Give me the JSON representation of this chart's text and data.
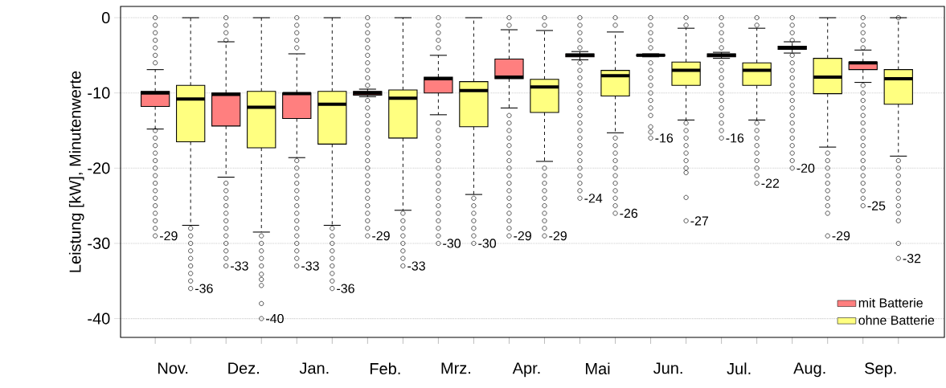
{
  "chart_data": {
    "type": "box",
    "ylabel": "Leistung [kW], Minutenwerte",
    "categories": [
      "Nov.",
      "Dez.",
      "Jan.",
      "Feb.",
      "Mrz.",
      "Apr.",
      "Mai",
      "Jun.",
      "Jul.",
      "Aug.",
      "Sep."
    ],
    "ylim": [
      -42.5,
      1.5
    ],
    "yticks": [
      -40,
      -30,
      -20,
      -10,
      0
    ],
    "grid": "y",
    "legend": "bottom right",
    "marker": "circle",
    "series": [
      {
        "name": "mit Batterie",
        "color": "#ff7f7f",
        "boxes": [
          {
            "low": -14.8,
            "q1": -11.8,
            "median": -10.0,
            "q3": -9.8,
            "high": -6.9,
            "outliers": [
              0,
              -1,
              -2,
              -3,
              -4,
              -5,
              -6,
              -15,
              -16,
              -17,
              -18,
              -19,
              -20,
              -21,
              -22,
              -23,
              -24,
              -25,
              -26,
              -27,
              -28,
              -29
            ]
          },
          {
            "low": -21.2,
            "q1": -14.4,
            "median": -10.2,
            "q3": -10.0,
            "high": -3.2,
            "outliers": [
              0,
              -1,
              -2,
              -3,
              -22,
              -23,
              -24,
              -25,
              -26,
              -27,
              -28,
              -29,
              -30,
              -31,
              -32,
              -33
            ]
          },
          {
            "low": -18.6,
            "q1": -13.4,
            "median": -10.1,
            "q3": -10.0,
            "high": -4.8,
            "outliers": [
              0,
              -1,
              -2,
              -3,
              -4,
              -19,
              -20,
              -21,
              -22,
              -23,
              -24,
              -25,
              -26,
              -27,
              -28,
              -29,
              -30,
              -31,
              -32,
              -33
            ]
          },
          {
            "low": -10.5,
            "q1": -10.3,
            "median": -10.0,
            "q3": -9.8,
            "high": -9.5,
            "outliers": [
              0,
              -1,
              -2,
              -3,
              -4,
              -5,
              -6,
              -7,
              -8,
              -9,
              -11,
              -12,
              -13,
              -14,
              -15,
              -16,
              -17,
              -18,
              -19,
              -20,
              -21,
              -22,
              -23,
              -24,
              -25,
              -26,
              -27,
              -28,
              -29
            ]
          },
          {
            "low": -12.9,
            "q1": -10.0,
            "median": -8.1,
            "q3": -7.9,
            "high": -5.0,
            "outliers": [
              0,
              -1,
              -2,
              -3,
              -4,
              -14,
              -15,
              -16,
              -17,
              -18,
              -19,
              -20,
              -21,
              -22,
              -23,
              -24,
              -25,
              -26,
              -27,
              -28,
              -29,
              -30
            ]
          },
          {
            "low": -12.0,
            "q1": -8.1,
            "median": -7.9,
            "q3": -5.5,
            "high": -1.6,
            "outliers": [
              0,
              -1,
              -13,
              -14,
              -15,
              -16,
              -17,
              -18,
              -19,
              -20,
              -21,
              -22,
              -23,
              -24,
              -25,
              -26,
              -27,
              -28,
              -29
            ]
          },
          {
            "low": -5.6,
            "q1": -5.2,
            "median": -5.0,
            "q3": -4.8,
            "high": -4.5,
            "outliers": [
              0,
              -1,
              -2,
              -3,
              -4,
              -6,
              -7,
              -8,
              -9,
              -10,
              -11,
              -12,
              -13,
              -14,
              -15,
              -16,
              -17,
              -18,
              -19,
              -20,
              -21,
              -22,
              -23,
              -24
            ]
          },
          {
            "low": -5.2,
            "q1": -5.1,
            "median": -5.0,
            "q3": -4.9,
            "high": -4.8,
            "outliers": [
              0,
              -1,
              -2,
              -3,
              -4,
              -6,
              -7,
              -8,
              -9,
              -10,
              -11,
              -12,
              -13,
              -14.5,
              -15.2,
              -16
            ]
          },
          {
            "low": -5.4,
            "q1": -5.2,
            "median": -5.0,
            "q3": -4.8,
            "high": -4.6,
            "outliers": [
              0,
              -1,
              -2,
              -3,
              -4,
              -6,
              -7,
              -8,
              -9,
              -10,
              -11,
              -12,
              -13,
              -14,
              -15,
              -16
            ]
          },
          {
            "low": -4.7,
            "q1": -4.2,
            "median": -4.0,
            "q3": -3.8,
            "high": -3.2,
            "outliers": [
              0,
              -1,
              -2,
              -3,
              -5,
              -6,
              -7,
              -8,
              -9,
              -10,
              -11,
              -12,
              -13,
              -14,
              -15,
              -16,
              -17,
              -18,
              -19,
              -20
            ]
          },
          {
            "low": -8.6,
            "q1": -6.9,
            "median": -6.0,
            "q3": -5.9,
            "high": -4.3,
            "outliers": [
              0,
              -1,
              -2,
              -3,
              -4,
              -9,
              -10,
              -11,
              -12,
              -13,
              -14,
              -15,
              -16,
              -17,
              -18,
              -19,
              -20,
              -21,
              -22,
              -23,
              -24,
              -25
            ]
          }
        ]
      },
      {
        "name": "ohne Batterie",
        "color": "#ffff80",
        "boxes": [
          {
            "low": -27.6,
            "q1": -16.5,
            "median": -10.8,
            "q3": -9.0,
            "high": 0,
            "outliers": [
              -28,
              -29,
              -30,
              -31,
              -32,
              -33,
              -34,
              -35,
              -36
            ]
          },
          {
            "low": -28.5,
            "q1": -17.3,
            "median": -11.9,
            "q3": -9.8,
            "high": 0,
            "outliers": [
              -29,
              -30,
              -31,
              -32,
              -33,
              -34.1,
              -34.8,
              -35.6,
              -38.0,
              -40
            ]
          },
          {
            "low": -27.6,
            "q1": -16.8,
            "median": -11.5,
            "q3": -9.8,
            "high": 0,
            "outliers": [
              -28,
              -29,
              -30,
              -31,
              -32,
              -33,
              -34,
              -35,
              -36
            ]
          },
          {
            "low": -25.6,
            "q1": -16.0,
            "median": -10.7,
            "q3": -9.6,
            "high": 0,
            "outliers": [
              -26,
              -27,
              -28,
              -29,
              -30,
              -31,
              -32,
              -33
            ]
          },
          {
            "low": -23.5,
            "q1": -14.5,
            "median": -9.7,
            "q3": -8.5,
            "high": 0,
            "outliers": [
              -24,
              -25,
              -26,
              -27,
              -28,
              -29,
              -30
            ]
          },
          {
            "low": -19.1,
            "q1": -12.6,
            "median": -9.2,
            "q3": -8.2,
            "high": -1.7,
            "outliers": [
              0,
              -1,
              -20,
              -21,
              -22,
              -23,
              -24,
              -25,
              -26,
              -27,
              -28,
              -29
            ]
          },
          {
            "low": -15.3,
            "q1": -10.4,
            "median": -7.7,
            "q3": -7.0,
            "high": -1.9,
            "outliers": [
              0,
              -1,
              -16,
              -17,
              -18,
              -19,
              -20,
              -21,
              -22,
              -23,
              -24,
              -25,
              -26
            ]
          },
          {
            "low": -13.6,
            "q1": -9.0,
            "median": -7.0,
            "q3": -5.9,
            "high": -1.4,
            "outliers": [
              0,
              -1,
              -14,
              -15,
              -16,
              -17,
              -18,
              -19,
              -20,
              -20.6,
              -23.9,
              -27
            ]
          },
          {
            "low": -13.6,
            "q1": -9.0,
            "median": -7.0,
            "q3": -6.0,
            "high": -1.4,
            "outliers": [
              0,
              -1,
              -14,
              -15,
              -16,
              -17,
              -18,
              -19,
              -20,
              -21,
              -22
            ]
          },
          {
            "low": -17.2,
            "q1": -10.1,
            "median": -7.9,
            "q3": -5.4,
            "high": 0,
            "outliers": [
              -18,
              -19,
              -20,
              -21,
              -22,
              -23,
              -24,
              -25,
              -26,
              -29
            ]
          },
          {
            "low": -18.4,
            "q1": -11.5,
            "median": -8.1,
            "q3": -6.9,
            "high": 0,
            "outliers": [
              0,
              -19,
              -20,
              -21,
              -22,
              -23,
              -24,
              -25,
              -26,
              -27,
              -30,
              -32
            ]
          }
        ]
      }
    ],
    "annotations": [
      "-29",
      "-36",
      "-33",
      "-40",
      "-33",
      "-36",
      "-29",
      "-33",
      "-30",
      "-30",
      "-29",
      "-29",
      "-24",
      "-26",
      "-16",
      "-27",
      "-16",
      "-22",
      "-20",
      "-29",
      "-25",
      "-32"
    ]
  }
}
